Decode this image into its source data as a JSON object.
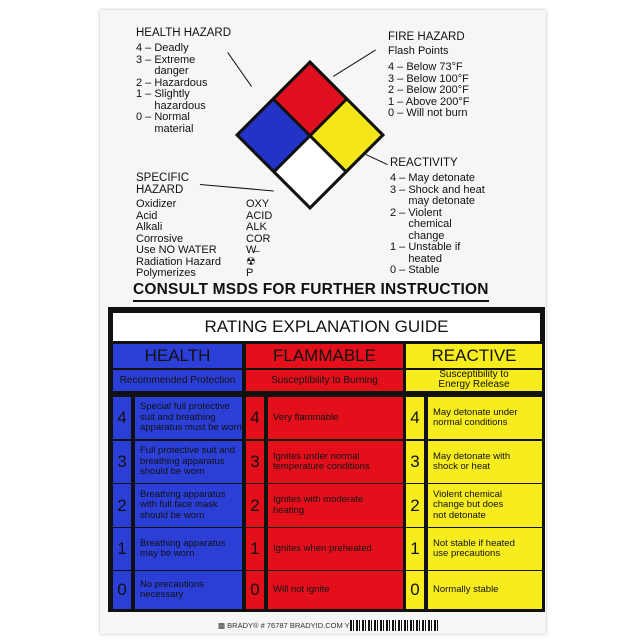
{
  "health_hazard": {
    "title": "HEALTH HAZARD",
    "items": [
      "4 – Deadly",
      "3 – Extreme\n      danger",
      "2 – Hazardous",
      "1 – Slightly\n      hazardous",
      "0 – Normal\n      material"
    ]
  },
  "fire_hazard": {
    "title": "FIRE HAZARD",
    "subtitle": "Flash Points",
    "items": [
      "4 – Below 73°F",
      "3 – Below 100°F",
      "2 – Below 200°F",
      "1 – Above 200°F",
      "0 – Will not burn"
    ]
  },
  "reactivity": {
    "title": "REACTIVITY",
    "items": [
      "4 – May detonate",
      "3 – Shock and heat\n      may detonate",
      "2 – Violent\n      chemical\n      change",
      "1 – Unstable if\n      heated",
      "0 – Stable"
    ]
  },
  "specific_hazard": {
    "title": "SPECIFIC\nHAZARD",
    "names": "Oxidizer\nAcid\nAlkali\nCorrosive\nUse NO WATER\nRadiation Hazard\nPolymerizes",
    "codes": "OXY\nACID\nALK\nCOR\nW̶\n☢\nP"
  },
  "diamond_colors": {
    "health": "#2233c8",
    "flammability": "#e01020",
    "reactivity": "#f5e61a",
    "special": "#ffffff"
  },
  "consult": "CONSULT MSDS FOR FURTHER INSTRUCTION",
  "guide": {
    "title": "RATING EXPLANATION GUIDE",
    "columns": [
      {
        "label": "HEALTH",
        "sub": "Recommended Protection",
        "color": "#2b3fd6",
        "rows": [
          [
            "4",
            "Special full protective\nsuit and breathing\napparatus must be worn"
          ],
          [
            "3",
            "Full protective suit and\nbreathing apparatus\nshould be worn"
          ],
          [
            "2",
            "Breathing apparatus\nwith full face mask\nshould be worn"
          ],
          [
            "1",
            "Breathing apparatus\nmay be worn"
          ],
          [
            "0",
            "No precautions\nnecessary"
          ]
        ]
      },
      {
        "label": "FLAMMABLE",
        "sub": "Susceptibility to Burning",
        "color": "#e3101c",
        "rows": [
          [
            "4",
            "Very flammable"
          ],
          [
            "3",
            "Ignites under normal\ntemperature conditions"
          ],
          [
            "2",
            "Ignites with moderate\nheating"
          ],
          [
            "1",
            "Ignites when preheated"
          ],
          [
            "0",
            "Will not ignite"
          ]
        ]
      },
      {
        "label": "REACTIVE",
        "sub": "Susceptibility to\nEnergy Release",
        "color": "#f7ec1e",
        "rows": [
          [
            "4",
            "May detonate under\nnormal conditions"
          ],
          [
            "3",
            "May detonate with\nshock or heat"
          ],
          [
            "2",
            "Violent chemical\nchange but does\nnot detonate"
          ],
          [
            "1",
            "Not stable if heated\nuse precautions"
          ],
          [
            "0",
            "Normally stable"
          ]
        ]
      }
    ]
  },
  "footer": "▩ BRADY® # 76787  BRADYID.COM  Y70260"
}
